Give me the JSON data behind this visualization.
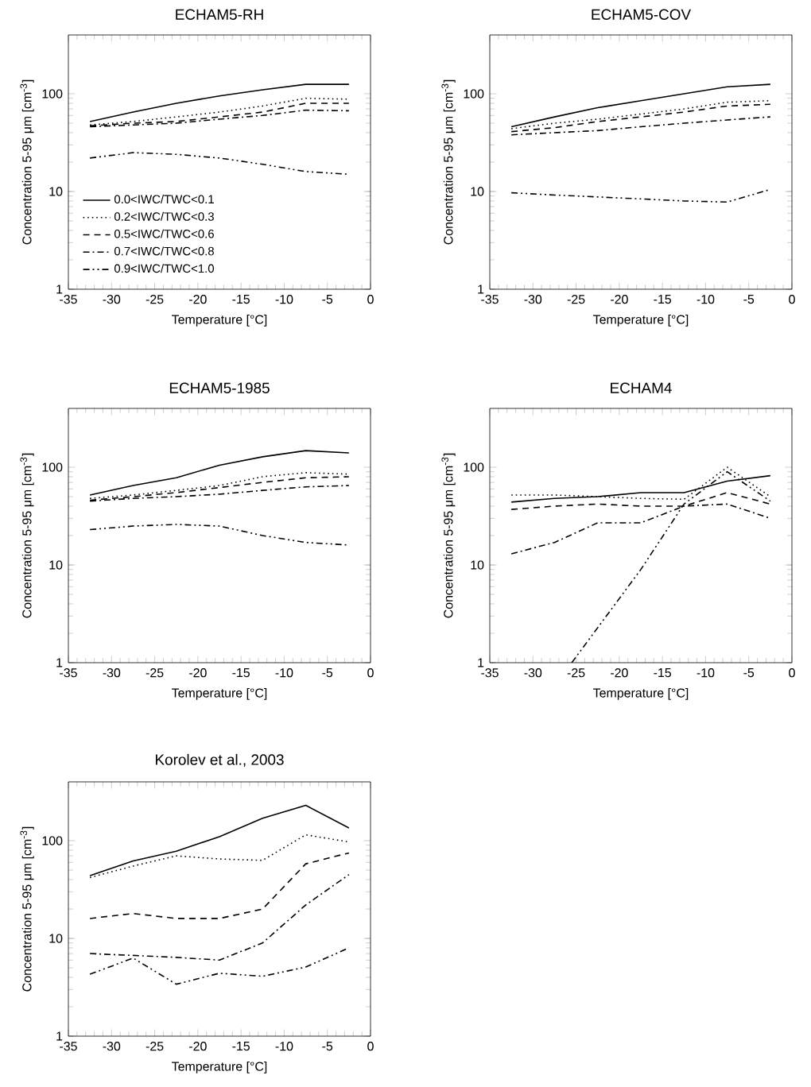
{
  "chart_data": [
    {
      "type": "line",
      "title": "ECHAM5-RH",
      "xlabel": "Temperature [°C]",
      "ylabel": "Concentration 5-95 μm [cm$^{-3}$]",
      "log": "y",
      "legend": "bottom left",
      "x": [
        -32.5,
        -27.5,
        -22.5,
        -17.5,
        -12.5,
        -7.5,
        -2.5
      ],
      "xlim": [
        -35,
        0
      ],
      "xticks": [
        -35,
        -30,
        -25,
        -20,
        -15,
        -10,
        -5,
        0
      ],
      "ylim": [
        1,
        400
      ],
      "yticks": [
        1,
        10,
        100
      ],
      "series": [
        {
          "name": "0.0<IWC/TWC<0.1",
          "color": "#000000",
          "line_style": "solid",
          "values": [
            52,
            65,
            80,
            95,
            110,
            125,
            125
          ]
        },
        {
          "name": "0.2<IWC/TWC<0.3",
          "color": "#000000",
          "line_style": "dotted",
          "values": [
            48,
            52,
            58,
            65,
            75,
            90,
            88
          ]
        },
        {
          "name": "0.5<IWC/TWC<0.6",
          "color": "#000000",
          "line_style": "dashed",
          "values": [
            47,
            50,
            52,
            58,
            65,
            80,
            80
          ]
        },
        {
          "name": "0.7<IWC/TWC<0.8",
          "color": "#000000",
          "line_style": "dashdot",
          "values": [
            46,
            48,
            50,
            55,
            60,
            68,
            67
          ]
        },
        {
          "name": "0.9<IWC/TWC<1.0",
          "color": "#000000",
          "line_style": "dashdotdot",
          "values": [
            22,
            25,
            24,
            22,
            19,
            16,
            15
          ]
        }
      ]
    },
    {
      "type": "line",
      "title": "ECHAM5-COV",
      "xlabel": "Temperature [°C]",
      "ylabel": "Concentration 5-95 μm [cm$^{-3}$]",
      "log": "y",
      "x": [
        -32.5,
        -27.5,
        -22.5,
        -17.5,
        -12.5,
        -7.5,
        -2.5
      ],
      "xlim": [
        -35,
        0
      ],
      "xticks": [
        -35,
        -30,
        -25,
        -20,
        -15,
        -10,
        -5,
        0
      ],
      "ylim": [
        1,
        400
      ],
      "yticks": [
        1,
        10,
        100
      ],
      "series": [
        {
          "color": "#000000",
          "line_style": "solid",
          "values": [
            46,
            58,
            72,
            85,
            100,
            118,
            125
          ]
        },
        {
          "color": "#000000",
          "line_style": "dotted",
          "values": [
            44,
            50,
            55,
            62,
            70,
            82,
            85
          ]
        },
        {
          "color": "#000000",
          "line_style": "dashed",
          "values": [
            41,
            45,
            52,
            58,
            65,
            75,
            78
          ]
        },
        {
          "color": "#000000",
          "line_style": "dashdot",
          "values": [
            38,
            40,
            42,
            46,
            50,
            54,
            58
          ]
        },
        {
          "color": "#000000",
          "line_style": "dashdotdot",
          "values": [
            9.7,
            9.2,
            8.8,
            8.4,
            8.0,
            7.8,
            10.5
          ]
        }
      ]
    },
    {
      "type": "line",
      "title": "ECHAM5-1985",
      "xlabel": "Temperature [°C]",
      "ylabel": "Concentration 5-95 μm [cm$^{-3}$]",
      "log": "y",
      "x": [
        -32.5,
        -27.5,
        -22.5,
        -17.5,
        -12.5,
        -7.5,
        -2.5
      ],
      "xlim": [
        -35,
        0
      ],
      "xticks": [
        -35,
        -30,
        -25,
        -20,
        -15,
        -10,
        -5,
        0
      ],
      "ylim": [
        1,
        400
      ],
      "yticks": [
        1,
        10,
        100
      ],
      "series": [
        {
          "color": "#000000",
          "line_style": "solid",
          "values": [
            52,
            65,
            78,
            105,
            128,
            148,
            140
          ]
        },
        {
          "color": "#000000",
          "line_style": "dotted",
          "values": [
            48,
            52,
            58,
            65,
            80,
            88,
            85
          ]
        },
        {
          "color": "#000000",
          "line_style": "dashed",
          "values": [
            46,
            50,
            55,
            62,
            70,
            78,
            80
          ]
        },
        {
          "color": "#000000",
          "line_style": "dashdot",
          "values": [
            45,
            48,
            50,
            53,
            58,
            63,
            65
          ]
        },
        {
          "color": "#000000",
          "line_style": "dashdotdot",
          "values": [
            23,
            25,
            26,
            25,
            20,
            17,
            16
          ]
        }
      ]
    },
    {
      "type": "line",
      "title": "ECHAM4",
      "xlabel": "Temperature [°C]",
      "ylabel": "Concentration 5-95 μm [cm$^{-3}$]",
      "log": "y",
      "x": [
        -32.5,
        -27.5,
        -22.5,
        -17.5,
        -12.5,
        -7.5,
        -2.5
      ],
      "xlim": [
        -35,
        0
      ],
      "xticks": [
        -35,
        -30,
        -25,
        -20,
        -15,
        -10,
        -5,
        0
      ],
      "ylim": [
        1,
        400
      ],
      "yticks": [
        1,
        10,
        100
      ],
      "series": [
        {
          "color": "#000000",
          "line_style": "solid",
          "values": [
            44,
            48,
            50,
            55,
            55,
            72,
            82
          ]
        },
        {
          "color": "#000000",
          "line_style": "dotted",
          "values": [
            52,
            52,
            50,
            48,
            47,
            100,
            50
          ]
        },
        {
          "color": "#000000",
          "line_style": "dashed",
          "values": [
            37,
            40,
            42,
            40,
            40,
            55,
            42
          ]
        },
        {
          "color": "#000000",
          "line_style": "dashdot",
          "values": [
            13,
            17,
            27,
            27,
            40,
            42,
            30
          ]
        },
        {
          "color": "#000000",
          "line_style": "dashdotdot",
          "x": [
            -25.5,
            -17.5,
            -12.5,
            -7.5,
            -2.5
          ],
          "values": [
            1,
            9,
            42,
            90,
            45
          ]
        }
      ]
    },
    {
      "type": "line",
      "title": "Korolev et al., 2003",
      "xlabel": "Temperature [°C]",
      "ylabel": "Concentration 5-95 μm [cm$^{-3}$]",
      "log": "y",
      "x": [
        -32.5,
        -27.5,
        -22.5,
        -17.5,
        -12.5,
        -7.5,
        -2.5
      ],
      "xlim": [
        -35,
        0
      ],
      "xticks": [
        -35,
        -30,
        -25,
        -20,
        -15,
        -10,
        -5,
        0
      ],
      "ylim": [
        1,
        400
      ],
      "yticks": [
        1,
        10,
        100
      ],
      "series": [
        {
          "color": "#000000",
          "line_style": "solid",
          "values": [
            44,
            62,
            78,
            110,
            170,
            230,
            135
          ]
        },
        {
          "color": "#000000",
          "line_style": "dotted",
          "values": [
            42,
            55,
            70,
            65,
            63,
            115,
            97
          ]
        },
        {
          "color": "#000000",
          "line_style": "dashed",
          "values": [
            16,
            18,
            16,
            16,
            20,
            58,
            75
          ]
        },
        {
          "color": "#000000",
          "line_style": "dashdot",
          "values": [
            7,
            6.7,
            6.4,
            6,
            9,
            22,
            45
          ]
        },
        {
          "color": "#000000",
          "line_style": "dashdotdot",
          "values": [
            4.3,
            6.3,
            3.4,
            4.4,
            4.1,
            5.1,
            8
          ]
        }
      ]
    }
  ]
}
